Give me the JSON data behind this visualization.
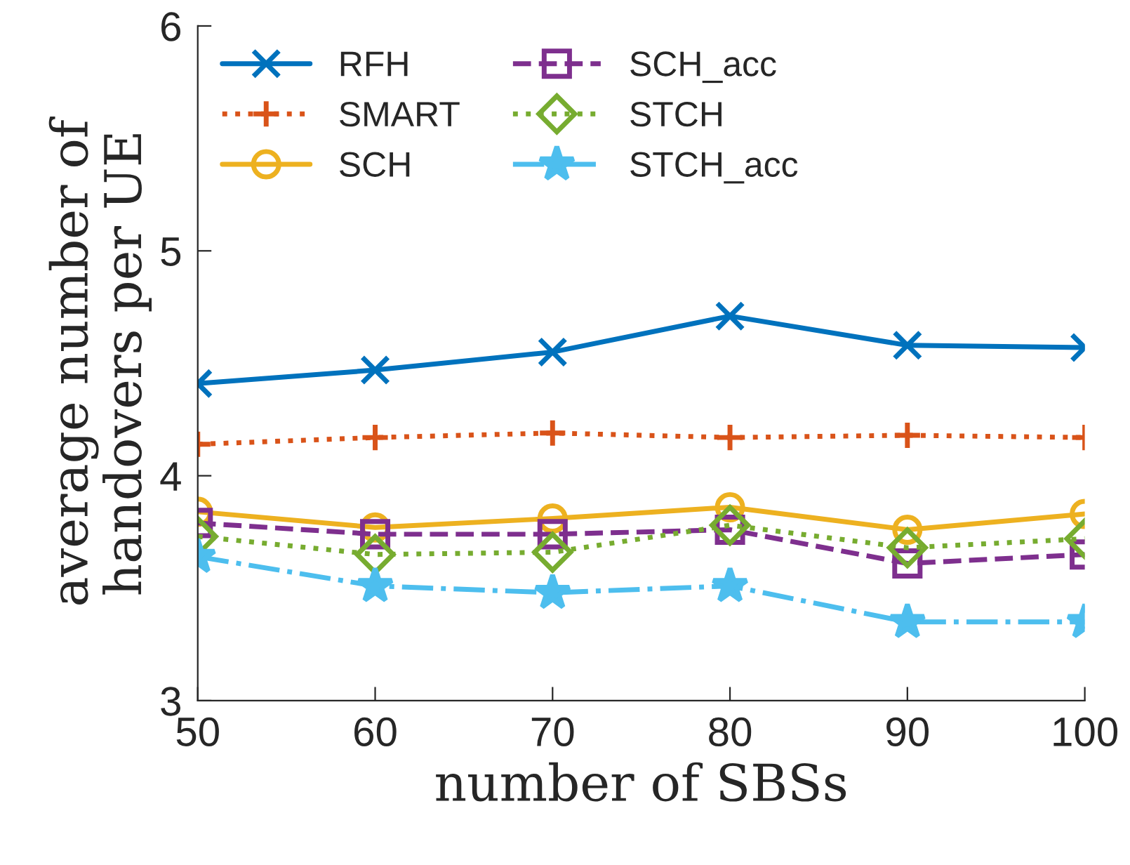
{
  "chart_data": {
    "type": "line",
    "xlabel": "number of SBSs",
    "ylabel": "average number of\nhandovers per UE",
    "x": [
      50,
      60,
      70,
      80,
      90,
      100
    ],
    "series": [
      {
        "name": "RFH",
        "color": "#0072bd",
        "marker": "cross",
        "line_style": "solid",
        "values": [
          4.41,
          4.47,
          4.55,
          4.71,
          4.58,
          4.57
        ]
      },
      {
        "name": "SMART",
        "color": "#d95319",
        "marker": "plus",
        "line_style": "dotted",
        "values": [
          4.14,
          4.17,
          4.19,
          4.17,
          4.18,
          4.17
        ]
      },
      {
        "name": "SCH",
        "color": "#edb120",
        "marker": "circle",
        "line_style": "solid",
        "values": [
          3.84,
          3.77,
          3.81,
          3.86,
          3.76,
          3.83
        ]
      },
      {
        "name": "SCH_acc",
        "color": "#7e2f8e",
        "marker": "square",
        "line_style": "dashed",
        "values": [
          3.79,
          3.74,
          3.74,
          3.76,
          3.61,
          3.65
        ]
      },
      {
        "name": "STCH",
        "color": "#77ac30",
        "marker": "diamond",
        "line_style": "dotted",
        "values": [
          3.73,
          3.65,
          3.66,
          3.78,
          3.68,
          3.72
        ]
      },
      {
        "name": "STCH_acc",
        "color": "#4dbeee",
        "marker": "star",
        "line_style": "dashdot",
        "values": [
          3.64,
          3.51,
          3.48,
          3.51,
          3.35,
          3.35
        ]
      }
    ],
    "xlim": [
      50,
      100
    ],
    "ylim": [
      3,
      6
    ],
    "xticks": [
      50,
      60,
      70,
      80,
      90,
      100
    ],
    "yticks": [
      3,
      4,
      5,
      6
    ],
    "grid": false,
    "legend": "top left"
  }
}
